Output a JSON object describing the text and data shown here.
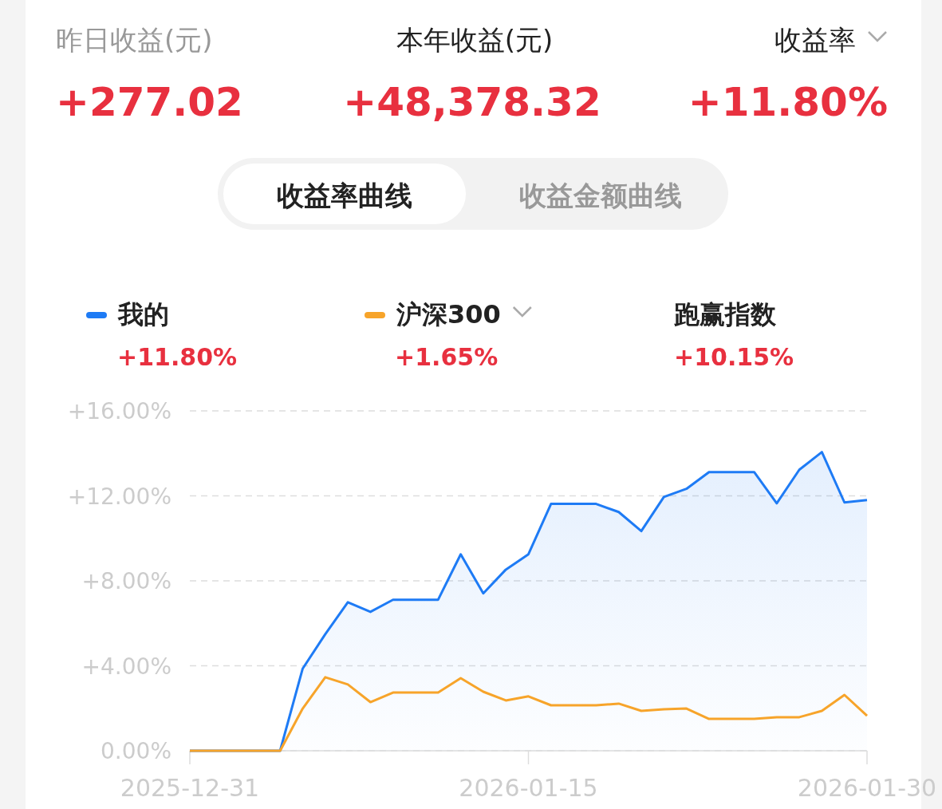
{
  "chart_data": {
    "type": "line",
    "annotations": [
      "昨日收益(元)",
      "+277.02",
      "本年收益(元)",
      "+48,378.32",
      "收益率",
      "+11.80%",
      "收益率曲线",
      "收益金额曲线",
      "+11.80%",
      "+1.65%",
      "跑赢指数",
      "+10.15%"
    ],
    "x": [
      "2025-12-31",
      "2026-01-01",
      "2026-01-02",
      "2026-01-03",
      "2026-01-04",
      "2026-01-05",
      "2026-01-06",
      "2026-01-07",
      "2026-01-08",
      "2026-01-09",
      "2026-01-10",
      "2026-01-11",
      "2026-01-12",
      "2026-01-13",
      "2026-01-14",
      "2026-01-15",
      "2026-01-16",
      "2026-01-17",
      "2026-01-18",
      "2026-01-19",
      "2026-01-20",
      "2026-01-21",
      "2026-01-22",
      "2026-01-23",
      "2026-01-24",
      "2026-01-25",
      "2026-01-26",
      "2026-01-27",
      "2026-01-28",
      "2026-01-29",
      "2026-01-30"
    ],
    "series": [
      {
        "name": "我的",
        "color": "#1e7bf5",
        "type": "area",
        "values": [
          0,
          0,
          0,
          0,
          0,
          3.87,
          5.49,
          6.99,
          6.54,
          7.11,
          7.11,
          7.11,
          9.25,
          7.41,
          8.53,
          9.25,
          11.62,
          11.62,
          11.62,
          11.24,
          10.34,
          11.95,
          12.33,
          13.12,
          13.12,
          13.12,
          11.65,
          13.23,
          14.06,
          11.69,
          11.8
        ]
      },
      {
        "name": "沪深300",
        "color": "#f7a42a",
        "type": "line",
        "values": [
          0,
          0,
          0,
          0,
          0,
          1.99,
          3.46,
          3.12,
          2.29,
          2.74,
          2.74,
          2.74,
          3.42,
          2.78,
          2.37,
          2.56,
          2.14,
          2.14,
          2.14,
          2.22,
          1.88,
          1.95,
          1.99,
          1.5,
          1.5,
          1.5,
          1.58,
          1.58,
          1.88,
          2.63,
          1.65
        ]
      }
    ],
    "xlim": [
      "2025-12-31",
      "2026-01-30"
    ],
    "xticks": [
      "2025-12-31",
      "2026-01-15",
      "2026-01-30"
    ],
    "ylim": [
      0,
      16
    ],
    "yticks": [
      {
        "value": 0,
        "label": "0.00%"
      },
      {
        "value": 4,
        "label": "+4.00%"
      },
      {
        "value": 8,
        "label": "+8.00%"
      },
      {
        "value": 12,
        "label": "+12.00%"
      },
      {
        "value": 16,
        "label": "+16.00%"
      }
    ],
    "grid": "y",
    "legend": "top"
  }
}
